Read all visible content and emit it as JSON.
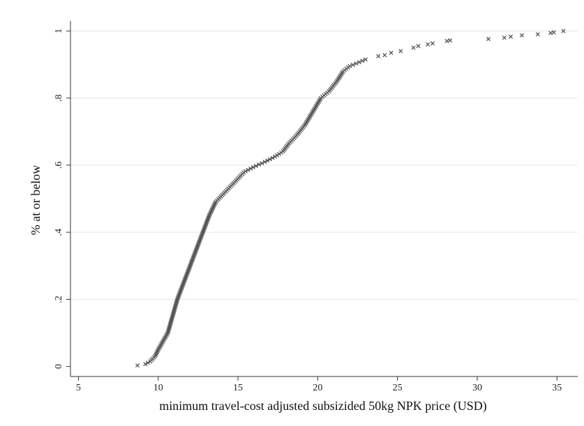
{
  "chart_data": {
    "type": "scatter",
    "title": "",
    "xlabel": "minimum travel-cost adjusted subsizided 50kg NPK price (USD)",
    "ylabel": "% at or below",
    "xlim": [
      4.5,
      36.3
    ],
    "ylim": [
      -0.03,
      1.03
    ],
    "x_ticks": [
      5,
      10,
      15,
      20,
      25,
      30,
      35
    ],
    "x_tick_labels": [
      "5",
      "10",
      "15",
      "20",
      "25",
      "30",
      "35"
    ],
    "y_ticks": [
      0,
      0.2,
      0.4,
      0.6,
      0.8,
      1
    ],
    "y_tick_labels": [
      "0",
      ".2",
      ".4",
      ".6",
      ".8",
      "1"
    ],
    "grid": "horizontal",
    "marker": "x",
    "marker_color": "#555555",
    "curve": [
      [
        8.7,
        0.003
      ],
      [
        9.2,
        0.007
      ],
      [
        9.5,
        0.015
      ],
      [
        9.8,
        0.03
      ],
      [
        10.0,
        0.05
      ],
      [
        10.3,
        0.075
      ],
      [
        10.6,
        0.1
      ],
      [
        10.9,
        0.15
      ],
      [
        11.2,
        0.2
      ],
      [
        11.6,
        0.25
      ],
      [
        12.0,
        0.3
      ],
      [
        12.4,
        0.35
      ],
      [
        12.8,
        0.4
      ],
      [
        13.2,
        0.45
      ],
      [
        13.6,
        0.49
      ],
      [
        14.2,
        0.52
      ],
      [
        14.8,
        0.55
      ],
      [
        15.4,
        0.58
      ],
      [
        16.0,
        0.595
      ],
      [
        16.7,
        0.61
      ],
      [
        17.3,
        0.625
      ],
      [
        17.8,
        0.64
      ],
      [
        18.2,
        0.665
      ],
      [
        18.7,
        0.69
      ],
      [
        19.2,
        0.72
      ],
      [
        19.7,
        0.76
      ],
      [
        20.2,
        0.8
      ],
      [
        20.7,
        0.82
      ],
      [
        21.2,
        0.85
      ],
      [
        21.6,
        0.88
      ],
      [
        22.0,
        0.895
      ],
      [
        22.5,
        0.905
      ],
      [
        23.0,
        0.915
      ]
    ],
    "tail_points": [
      [
        23.8,
        0.925
      ],
      [
        24.2,
        0.928
      ],
      [
        24.6,
        0.935
      ],
      [
        25.2,
        0.94
      ],
      [
        26.0,
        0.95
      ],
      [
        26.3,
        0.955
      ],
      [
        26.9,
        0.96
      ],
      [
        27.2,
        0.963
      ],
      [
        28.1,
        0.97
      ],
      [
        28.3,
        0.972
      ],
      [
        30.7,
        0.976
      ],
      [
        31.7,
        0.98
      ],
      [
        32.1,
        0.983
      ],
      [
        32.8,
        0.987
      ],
      [
        33.8,
        0.99
      ],
      [
        34.6,
        0.994
      ],
      [
        34.8,
        0.996
      ],
      [
        35.4,
        1.0
      ]
    ]
  }
}
